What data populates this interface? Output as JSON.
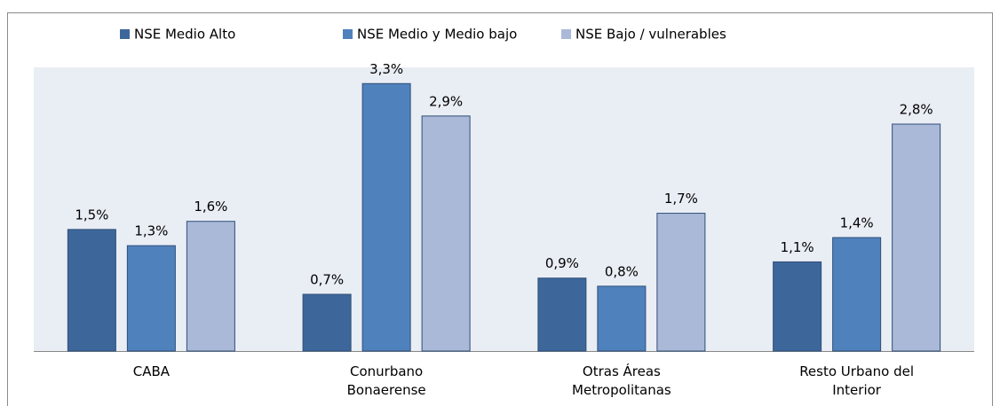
{
  "chart_data": {
    "type": "bar",
    "categories": [
      "CABA",
      "Conurbano Bonaerense",
      "Otras Áreas Metropolitanas",
      "Resto Urbano del Interior"
    ],
    "series": [
      {
        "name": "NSE Medio Alto",
        "color": "#3d679b",
        "values": [
          1.5,
          0.7,
          0.9,
          1.1
        ],
        "value_labels": [
          "1,5%",
          "0,7%",
          "0,9%",
          "1,1%"
        ]
      },
      {
        "name": "NSE Medio y Medio bajo",
        "color": "#4f81bd",
        "values": [
          1.3,
          3.3,
          0.8,
          1.4
        ],
        "value_labels": [
          "1,3%",
          "3,3%",
          "0,8%",
          "1,4%"
        ]
      },
      {
        "name": "NSE Bajo / vulnerables",
        "color": "#aab9d8",
        "values": [
          1.6,
          2.9,
          1.7,
          2.8
        ],
        "value_labels": [
          "1,6%",
          "2,9%",
          "1,7%",
          "2,8%"
        ]
      }
    ],
    "ylim": [
      0,
      3.5
    ],
    "legend": "top"
  }
}
